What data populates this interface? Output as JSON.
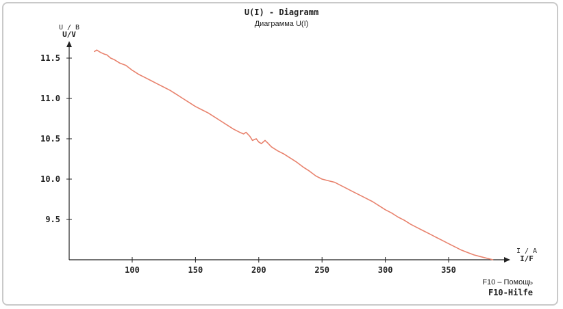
{
  "window": {
    "title": "U(I) - Diagramm",
    "subtitle": "Диаграмма U(I)",
    "help_ru": "F10 – Помощь",
    "help_de": "F10-Hilfe"
  },
  "colors": {
    "line": "#e8826d",
    "axis": "#222222",
    "frame": "#c9c9c9"
  },
  "chart_data": {
    "type": "line",
    "title": "U(I) - Diagramm",
    "subtitle": "Диаграмма U(I)",
    "ylabel_ru": "U / В",
    "ylabel_de": "U/V",
    "xlabel_ru": "I / A",
    "xlabel_de": "I/F",
    "xlim": [
      55,
      392
    ],
    "ylim": [
      9.0,
      11.75
    ],
    "x_ticks": [
      100,
      150,
      200,
      250,
      300,
      350
    ],
    "x_tick_labels": [
      "100",
      "150",
      "200",
      "250",
      "300",
      "350"
    ],
    "y_ticks": [
      9.5,
      10.0,
      10.5,
      11.0,
      11.5
    ],
    "y_tick_labels": [
      "9.5",
      "10.0",
      "10.5",
      "11.0",
      "11.5"
    ],
    "grid": false,
    "series": [
      {
        "x": [
          70,
          72,
          75,
          78,
          80,
          83,
          86,
          90,
          95,
          100,
          105,
          110,
          115,
          120,
          125,
          130,
          135,
          140,
          145,
          150,
          155,
          160,
          165,
          170,
          175,
          180,
          185,
          188,
          190,
          193,
          195,
          198,
          200,
          202,
          205,
          207,
          210,
          215,
          220,
          225,
          230,
          235,
          240,
          245,
          250,
          255,
          260,
          265,
          270,
          275,
          280,
          285,
          290,
          295,
          300,
          305,
          310,
          315,
          320,
          325,
          330,
          335,
          340,
          345,
          350,
          355,
          360,
          365,
          370,
          375,
          380,
          385
        ],
        "y": [
          11.58,
          11.6,
          11.57,
          11.55,
          11.54,
          11.5,
          11.48,
          11.44,
          11.41,
          11.35,
          11.3,
          11.26,
          11.22,
          11.18,
          11.14,
          11.1,
          11.05,
          11.0,
          10.95,
          10.9,
          10.86,
          10.82,
          10.77,
          10.72,
          10.67,
          10.62,
          10.58,
          10.56,
          10.58,
          10.53,
          10.48,
          10.5,
          10.46,
          10.44,
          10.48,
          10.45,
          10.4,
          10.35,
          10.31,
          10.26,
          10.21,
          10.15,
          10.1,
          10.04,
          10.0,
          9.98,
          9.96,
          9.92,
          9.88,
          9.84,
          9.8,
          9.76,
          9.72,
          9.67,
          9.62,
          9.58,
          9.53,
          9.49,
          9.44,
          9.4,
          9.36,
          9.32,
          9.28,
          9.24,
          9.2,
          9.16,
          9.12,
          9.09,
          9.06,
          9.04,
          9.02,
          9.0
        ]
      }
    ]
  }
}
